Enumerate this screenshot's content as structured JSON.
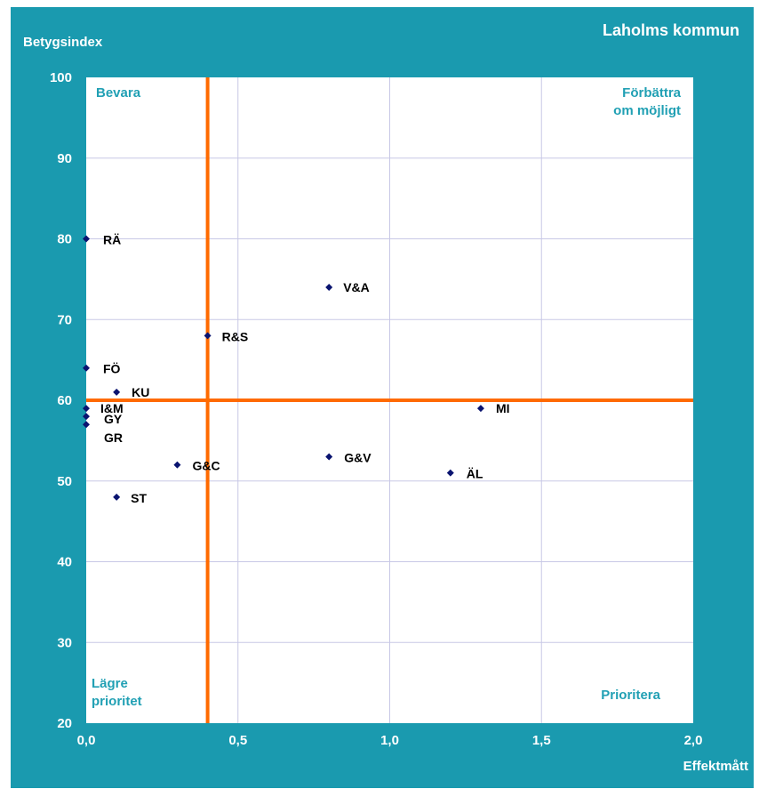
{
  "chart_data": {
    "type": "scatter",
    "title": "Laholms kommun",
    "xlabel": "Effektmått",
    "ylabel": "Betygsindex",
    "xlim": [
      0,
      2.0
    ],
    "ylim": [
      20,
      100
    ],
    "x_ticks": [
      "0,0",
      "0,5",
      "1,0",
      "1,5",
      "2,0"
    ],
    "x_tick_values": [
      0,
      0.5,
      1.0,
      1.5,
      2.0
    ],
    "y_ticks": [
      "20",
      "30",
      "40",
      "50",
      "60",
      "70",
      "80",
      "90",
      "100"
    ],
    "y_tick_values": [
      20,
      30,
      40,
      50,
      60,
      70,
      80,
      90,
      100
    ],
    "grid": true,
    "reference_lines": {
      "x": 0.4,
      "y": 60
    },
    "quadrants": {
      "top_left": [
        "Bevara"
      ],
      "top_right": [
        "Förbättra",
        "om möjligt"
      ],
      "bottom_left": [
        "Lägre",
        "prioritet"
      ],
      "bottom_right": [
        "Prioritera"
      ]
    },
    "points": [
      {
        "label": "RÄ",
        "x": 0.0,
        "y": 80
      },
      {
        "label": "V&A",
        "x": 0.8,
        "y": 74
      },
      {
        "label": "R&S",
        "x": 0.4,
        "y": 68
      },
      {
        "label": "FÖ",
        "x": 0.0,
        "y": 64
      },
      {
        "label": "KU",
        "x": 0.1,
        "y": 61
      },
      {
        "label": "I&M",
        "x": 0.0,
        "y": 59
      },
      {
        "label": "GY",
        "x": 0.0,
        "y": 58
      },
      {
        "label": "GR",
        "x": 0.0,
        "y": 57
      },
      {
        "label": "MI",
        "x": 1.3,
        "y": 59
      },
      {
        "label": "G&V",
        "x": 0.8,
        "y": 53
      },
      {
        "label": "G&C",
        "x": 0.3,
        "y": 52
      },
      {
        "label": "ÄL",
        "x": 1.2,
        "y": 51
      },
      {
        "label": "ST",
        "x": 0.1,
        "y": 48
      }
    ]
  },
  "colors": {
    "frame": "#1a9aaf",
    "plot_bg": "#ffffff",
    "grid": "#c8c8e6",
    "reference": "#ff6a00",
    "marker": "#0a1470",
    "quadrant_text": "#21a0b4",
    "title_text": "#ffffff"
  }
}
